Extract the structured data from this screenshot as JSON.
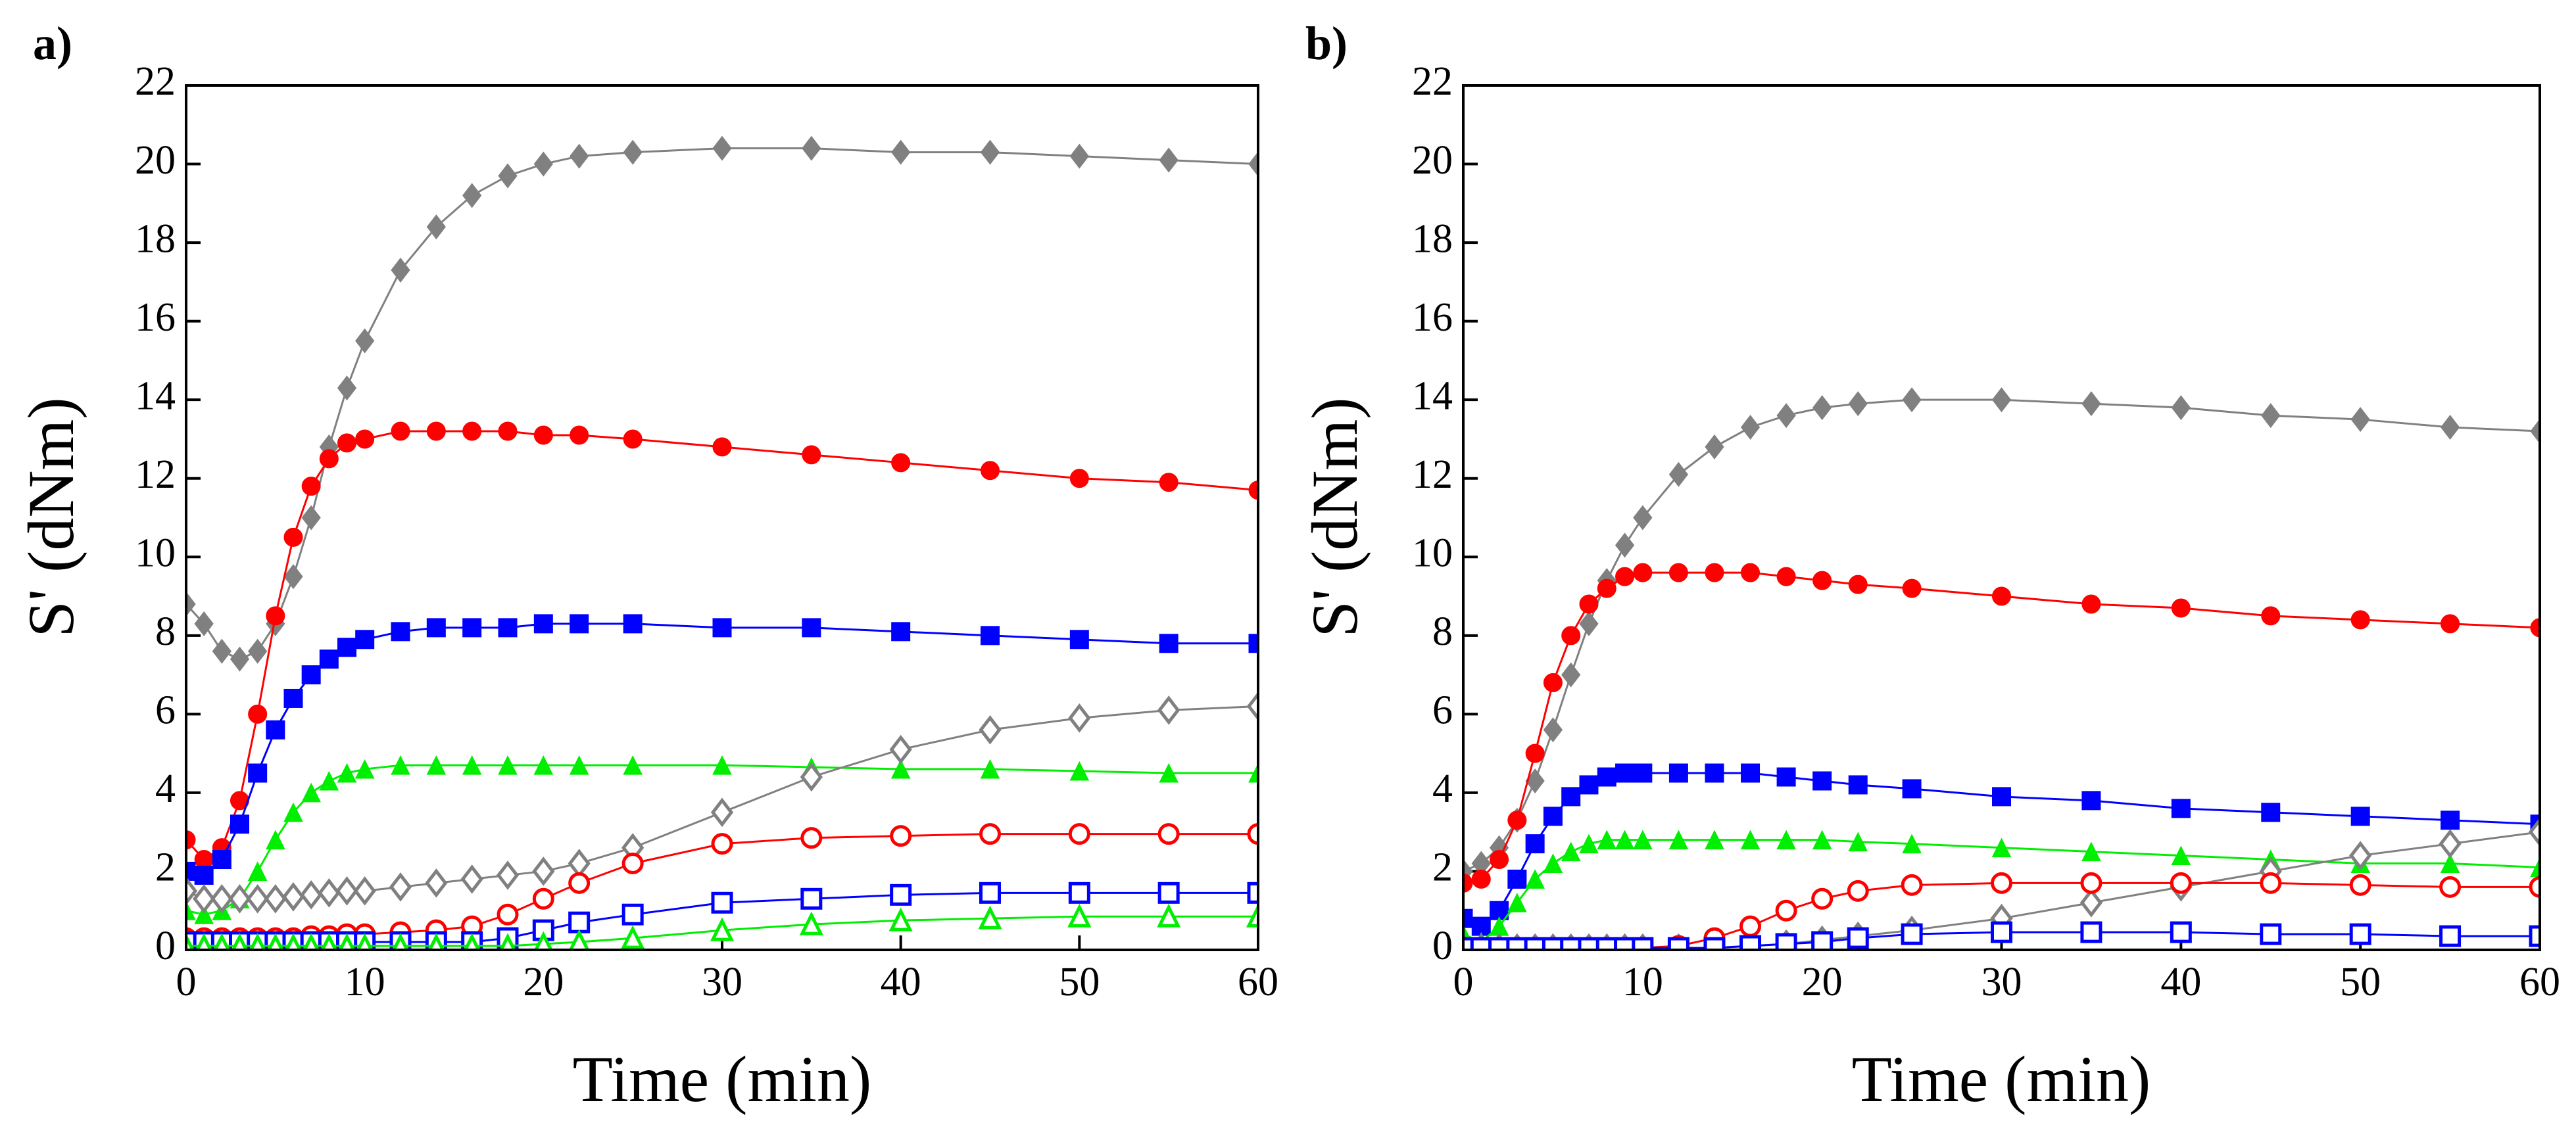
{
  "chart_data": [
    {
      "type": "line",
      "panel_label": "a)",
      "x_label": "Time (min)",
      "y_label": "S' (dNm)",
      "xlim": [
        0,
        60
      ],
      "xticks": [
        0,
        10,
        20,
        30,
        40,
        50,
        60
      ],
      "ylim": [
        0,
        22
      ],
      "yticks": [
        0,
        2,
        4,
        6,
        8,
        10,
        12,
        14,
        16,
        18,
        20,
        22
      ],
      "x": [
        0,
        1,
        2,
        3,
        4,
        5,
        6,
        7,
        8,
        9,
        10,
        12,
        14,
        16,
        18,
        20,
        22,
        25,
        30,
        35,
        40,
        45,
        50,
        55,
        60
      ],
      "series": [
        {
          "color": "#808080",
          "marker": "diamond",
          "filled": true,
          "values": [
            8.8,
            8.3,
            7.6,
            7.4,
            7.6,
            8.3,
            9.5,
            11.0,
            12.8,
            14.3,
            15.5,
            17.3,
            18.4,
            19.2,
            19.7,
            20.0,
            20.2,
            20.3,
            20.4,
            20.4,
            20.3,
            20.3,
            20.2,
            20.1,
            20.0
          ]
        },
        {
          "color": "#ff0000",
          "marker": "circle",
          "filled": true,
          "values": [
            2.8,
            2.3,
            2.6,
            3.8,
            6.0,
            8.5,
            10.5,
            11.8,
            12.5,
            12.9,
            13.0,
            13.2,
            13.2,
            13.2,
            13.2,
            13.1,
            13.1,
            13.0,
            12.8,
            12.6,
            12.4,
            12.2,
            12.0,
            11.9,
            11.7
          ]
        },
        {
          "color": "#0000ff",
          "marker": "square",
          "filled": true,
          "values": [
            2.0,
            1.9,
            2.3,
            3.2,
            4.5,
            5.6,
            6.4,
            7.0,
            7.4,
            7.7,
            7.9,
            8.1,
            8.2,
            8.2,
            8.2,
            8.3,
            8.3,
            8.3,
            8.2,
            8.2,
            8.1,
            8.0,
            7.9,
            7.8,
            7.8
          ]
        },
        {
          "color": "#00ee00",
          "marker": "triangle",
          "filled": true,
          "values": [
            1.0,
            0.9,
            1.0,
            1.3,
            2.0,
            2.8,
            3.5,
            4.0,
            4.3,
            4.5,
            4.6,
            4.7,
            4.7,
            4.7,
            4.7,
            4.7,
            4.7,
            4.7,
            4.7,
            4.65,
            4.6,
            4.6,
            4.55,
            4.5,
            4.5
          ]
        },
        {
          "color": "#808080",
          "marker": "diamond",
          "filled": false,
          "values": [
            1.5,
            1.3,
            1.3,
            1.3,
            1.3,
            1.3,
            1.35,
            1.4,
            1.45,
            1.5,
            1.5,
            1.6,
            1.7,
            1.8,
            1.9,
            2.0,
            2.2,
            2.6,
            3.5,
            4.4,
            5.1,
            5.6,
            5.9,
            6.1,
            6.2
          ]
        },
        {
          "color": "#ff0000",
          "marker": "circle",
          "filled": false,
          "values": [
            0.3,
            0.3,
            0.3,
            0.3,
            0.3,
            0.3,
            0.3,
            0.35,
            0.35,
            0.4,
            0.4,
            0.45,
            0.5,
            0.6,
            0.9,
            1.3,
            1.7,
            2.2,
            2.7,
            2.85,
            2.9,
            2.95,
            2.95,
            2.95,
            2.95
          ]
        },
        {
          "color": "#0000ff",
          "marker": "square",
          "filled": false,
          "values": [
            0.2,
            0.2,
            0.2,
            0.2,
            0.2,
            0.2,
            0.2,
            0.2,
            0.2,
            0.2,
            0.2,
            0.2,
            0.2,
            0.2,
            0.3,
            0.5,
            0.7,
            0.9,
            1.2,
            1.3,
            1.4,
            1.45,
            1.45,
            1.45,
            1.45
          ]
        },
        {
          "color": "#00ee00",
          "marker": "triangle",
          "filled": false,
          "values": [
            0.1,
            0.1,
            0.1,
            0.1,
            0.1,
            0.1,
            0.1,
            0.1,
            0.1,
            0.1,
            0.1,
            0.1,
            0.1,
            0.1,
            0.1,
            0.15,
            0.2,
            0.3,
            0.5,
            0.65,
            0.75,
            0.8,
            0.85,
            0.85,
            0.85
          ]
        }
      ]
    },
    {
      "type": "line",
      "panel_label": "b)",
      "x_label": "Time (min)",
      "y_label": "S' (dNm)",
      "xlim": [
        0,
        60
      ],
      "xticks": [
        0,
        10,
        20,
        30,
        40,
        50,
        60
      ],
      "ylim": [
        0,
        22
      ],
      "yticks": [
        0,
        2,
        4,
        6,
        8,
        10,
        12,
        14,
        16,
        18,
        20,
        22
      ],
      "x": [
        0,
        1,
        2,
        3,
        4,
        5,
        6,
        7,
        8,
        9,
        10,
        12,
        14,
        16,
        18,
        20,
        22,
        25,
        30,
        35,
        40,
        45,
        50,
        55,
        60
      ],
      "series": [
        {
          "color": "#808080",
          "marker": "diamond",
          "filled": true,
          "values": [
            2.0,
            2.2,
            2.6,
            3.3,
            4.3,
            5.6,
            7.0,
            8.3,
            9.4,
            10.3,
            11.0,
            12.1,
            12.8,
            13.3,
            13.6,
            13.8,
            13.9,
            14.0,
            14.0,
            13.9,
            13.8,
            13.6,
            13.5,
            13.3,
            13.2
          ]
        },
        {
          "color": "#ff0000",
          "marker": "circle",
          "filled": true,
          "values": [
            1.7,
            1.8,
            2.3,
            3.3,
            5.0,
            6.8,
            8.0,
            8.8,
            9.2,
            9.5,
            9.6,
            9.6,
            9.6,
            9.6,
            9.5,
            9.4,
            9.3,
            9.2,
            9.0,
            8.8,
            8.7,
            8.5,
            8.4,
            8.3,
            8.2
          ]
        },
        {
          "color": "#0000ff",
          "marker": "square",
          "filled": true,
          "values": [
            0.8,
            0.6,
            1.0,
            1.8,
            2.7,
            3.4,
            3.9,
            4.2,
            4.4,
            4.5,
            4.5,
            4.5,
            4.5,
            4.5,
            4.4,
            4.3,
            4.2,
            4.1,
            3.9,
            3.8,
            3.6,
            3.5,
            3.4,
            3.3,
            3.2
          ]
        },
        {
          "color": "#00ee00",
          "marker": "triangle",
          "filled": true,
          "values": [
            0.4,
            0.2,
            0.6,
            1.2,
            1.8,
            2.2,
            2.5,
            2.7,
            2.8,
            2.8,
            2.8,
            2.8,
            2.8,
            2.8,
            2.8,
            2.8,
            2.75,
            2.7,
            2.6,
            2.5,
            2.4,
            2.3,
            2.2,
            2.2,
            2.1
          ]
        },
        {
          "color": "#808080",
          "marker": "diamond",
          "filled": false,
          "values": [
            0.05,
            0.05,
            0.05,
            0.05,
            0.05,
            0.05,
            0.05,
            0.05,
            0.05,
            0.05,
            0.05,
            0.05,
            0.05,
            0.1,
            0.15,
            0.25,
            0.35,
            0.5,
            0.8,
            1.2,
            1.6,
            2.0,
            2.4,
            2.7,
            3.0
          ]
        },
        {
          "color": "#ff0000",
          "marker": "circle",
          "filled": false,
          "values": [
            0.05,
            0.05,
            0.05,
            0.05,
            0.05,
            0.05,
            0.05,
            0.05,
            0.05,
            0.05,
            0.05,
            0.1,
            0.3,
            0.6,
            1.0,
            1.3,
            1.5,
            1.65,
            1.7,
            1.7,
            1.7,
            1.7,
            1.65,
            1.6,
            1.6
          ]
        },
        {
          "color": "#0000ff",
          "marker": "square",
          "filled": false,
          "values": [
            0.05,
            0.05,
            0.05,
            0.05,
            0.05,
            0.05,
            0.05,
            0.05,
            0.05,
            0.05,
            0.05,
            0.05,
            0.05,
            0.1,
            0.15,
            0.2,
            0.3,
            0.4,
            0.45,
            0.45,
            0.45,
            0.4,
            0.4,
            0.35,
            0.35
          ]
        }
      ]
    }
  ]
}
